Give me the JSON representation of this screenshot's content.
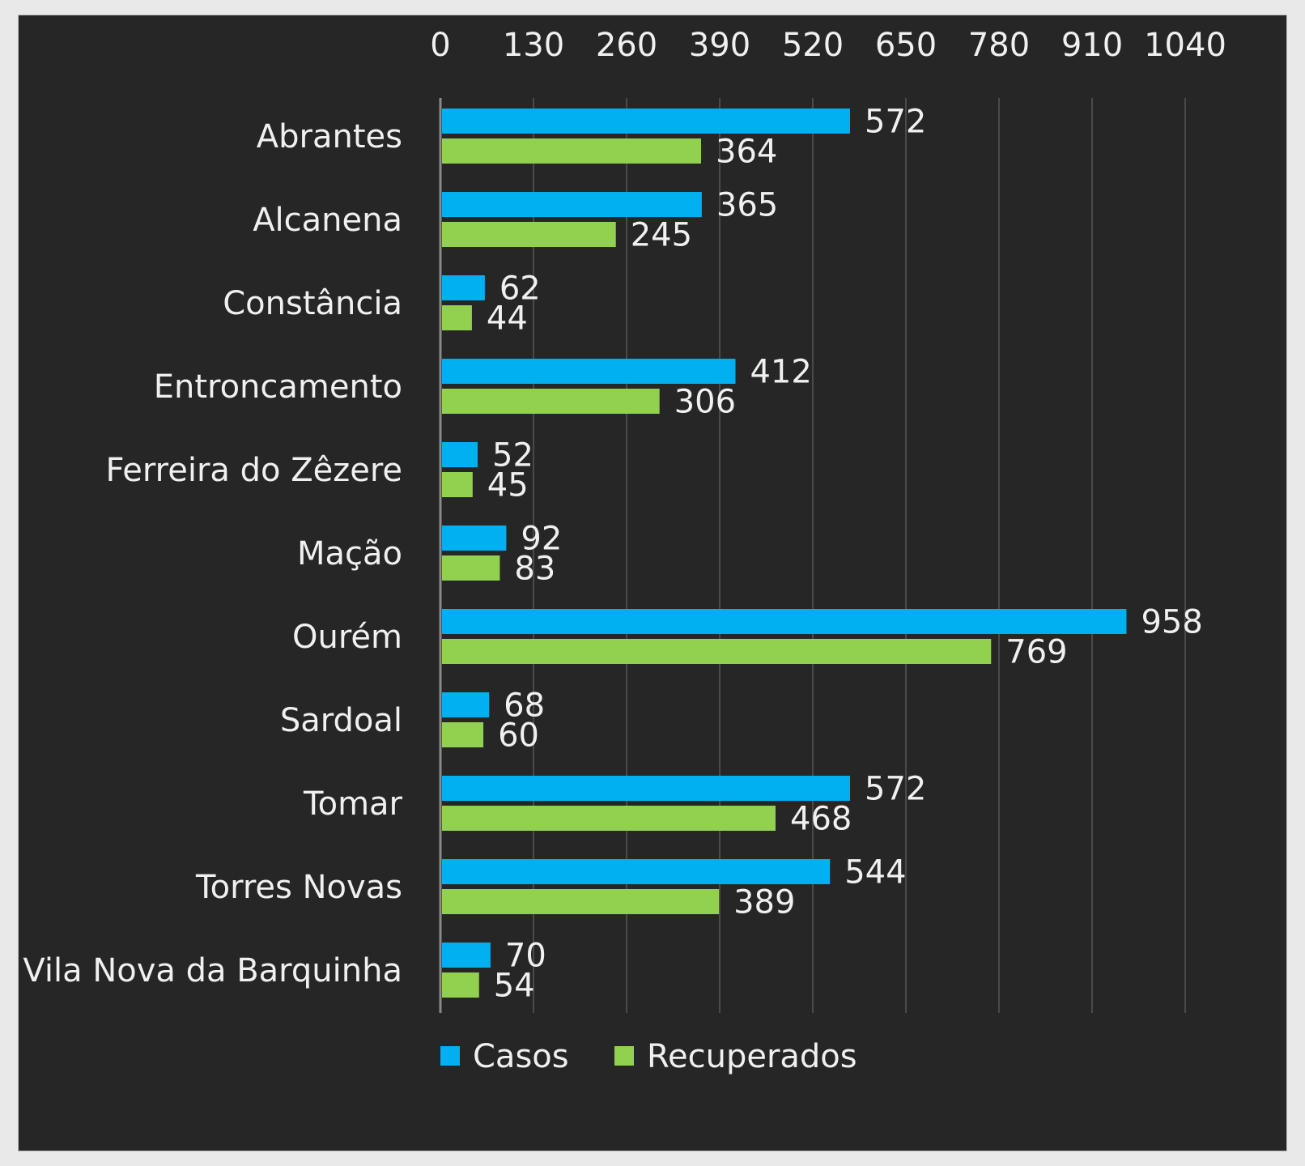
{
  "chart_data": {
    "type": "bar",
    "orientation": "horizontal",
    "title": "",
    "xlabel": "",
    "ylabel": "",
    "x_axis_position": "top",
    "xlim": [
      0,
      1040
    ],
    "x_ticks": [
      0,
      130,
      260,
      390,
      520,
      650,
      780,
      910,
      1040
    ],
    "grid": true,
    "legend_position": "bottom",
    "categories": [
      "Abrantes",
      "Alcanena",
      "Constância",
      "Entroncamento",
      "Ferreira do Zêzere",
      "Mação",
      "Ourém",
      "Sardoal",
      "Tomar",
      "Torres Novas",
      "Vila Nova da Barquinha"
    ],
    "series": [
      {
        "name": "Casos",
        "color": "#00b0f0",
        "values": [
          572,
          365,
          62,
          412,
          52,
          92,
          958,
          68,
          572,
          544,
          70
        ]
      },
      {
        "name": "Recuperados",
        "color": "#92d050",
        "values": [
          364,
          245,
          44,
          306,
          45,
          83,
          769,
          60,
          468,
          389,
          54
        ]
      }
    ],
    "colors": {
      "background": "#262626",
      "text": "#f0f0f0",
      "grid": "#4a4a4a"
    }
  }
}
